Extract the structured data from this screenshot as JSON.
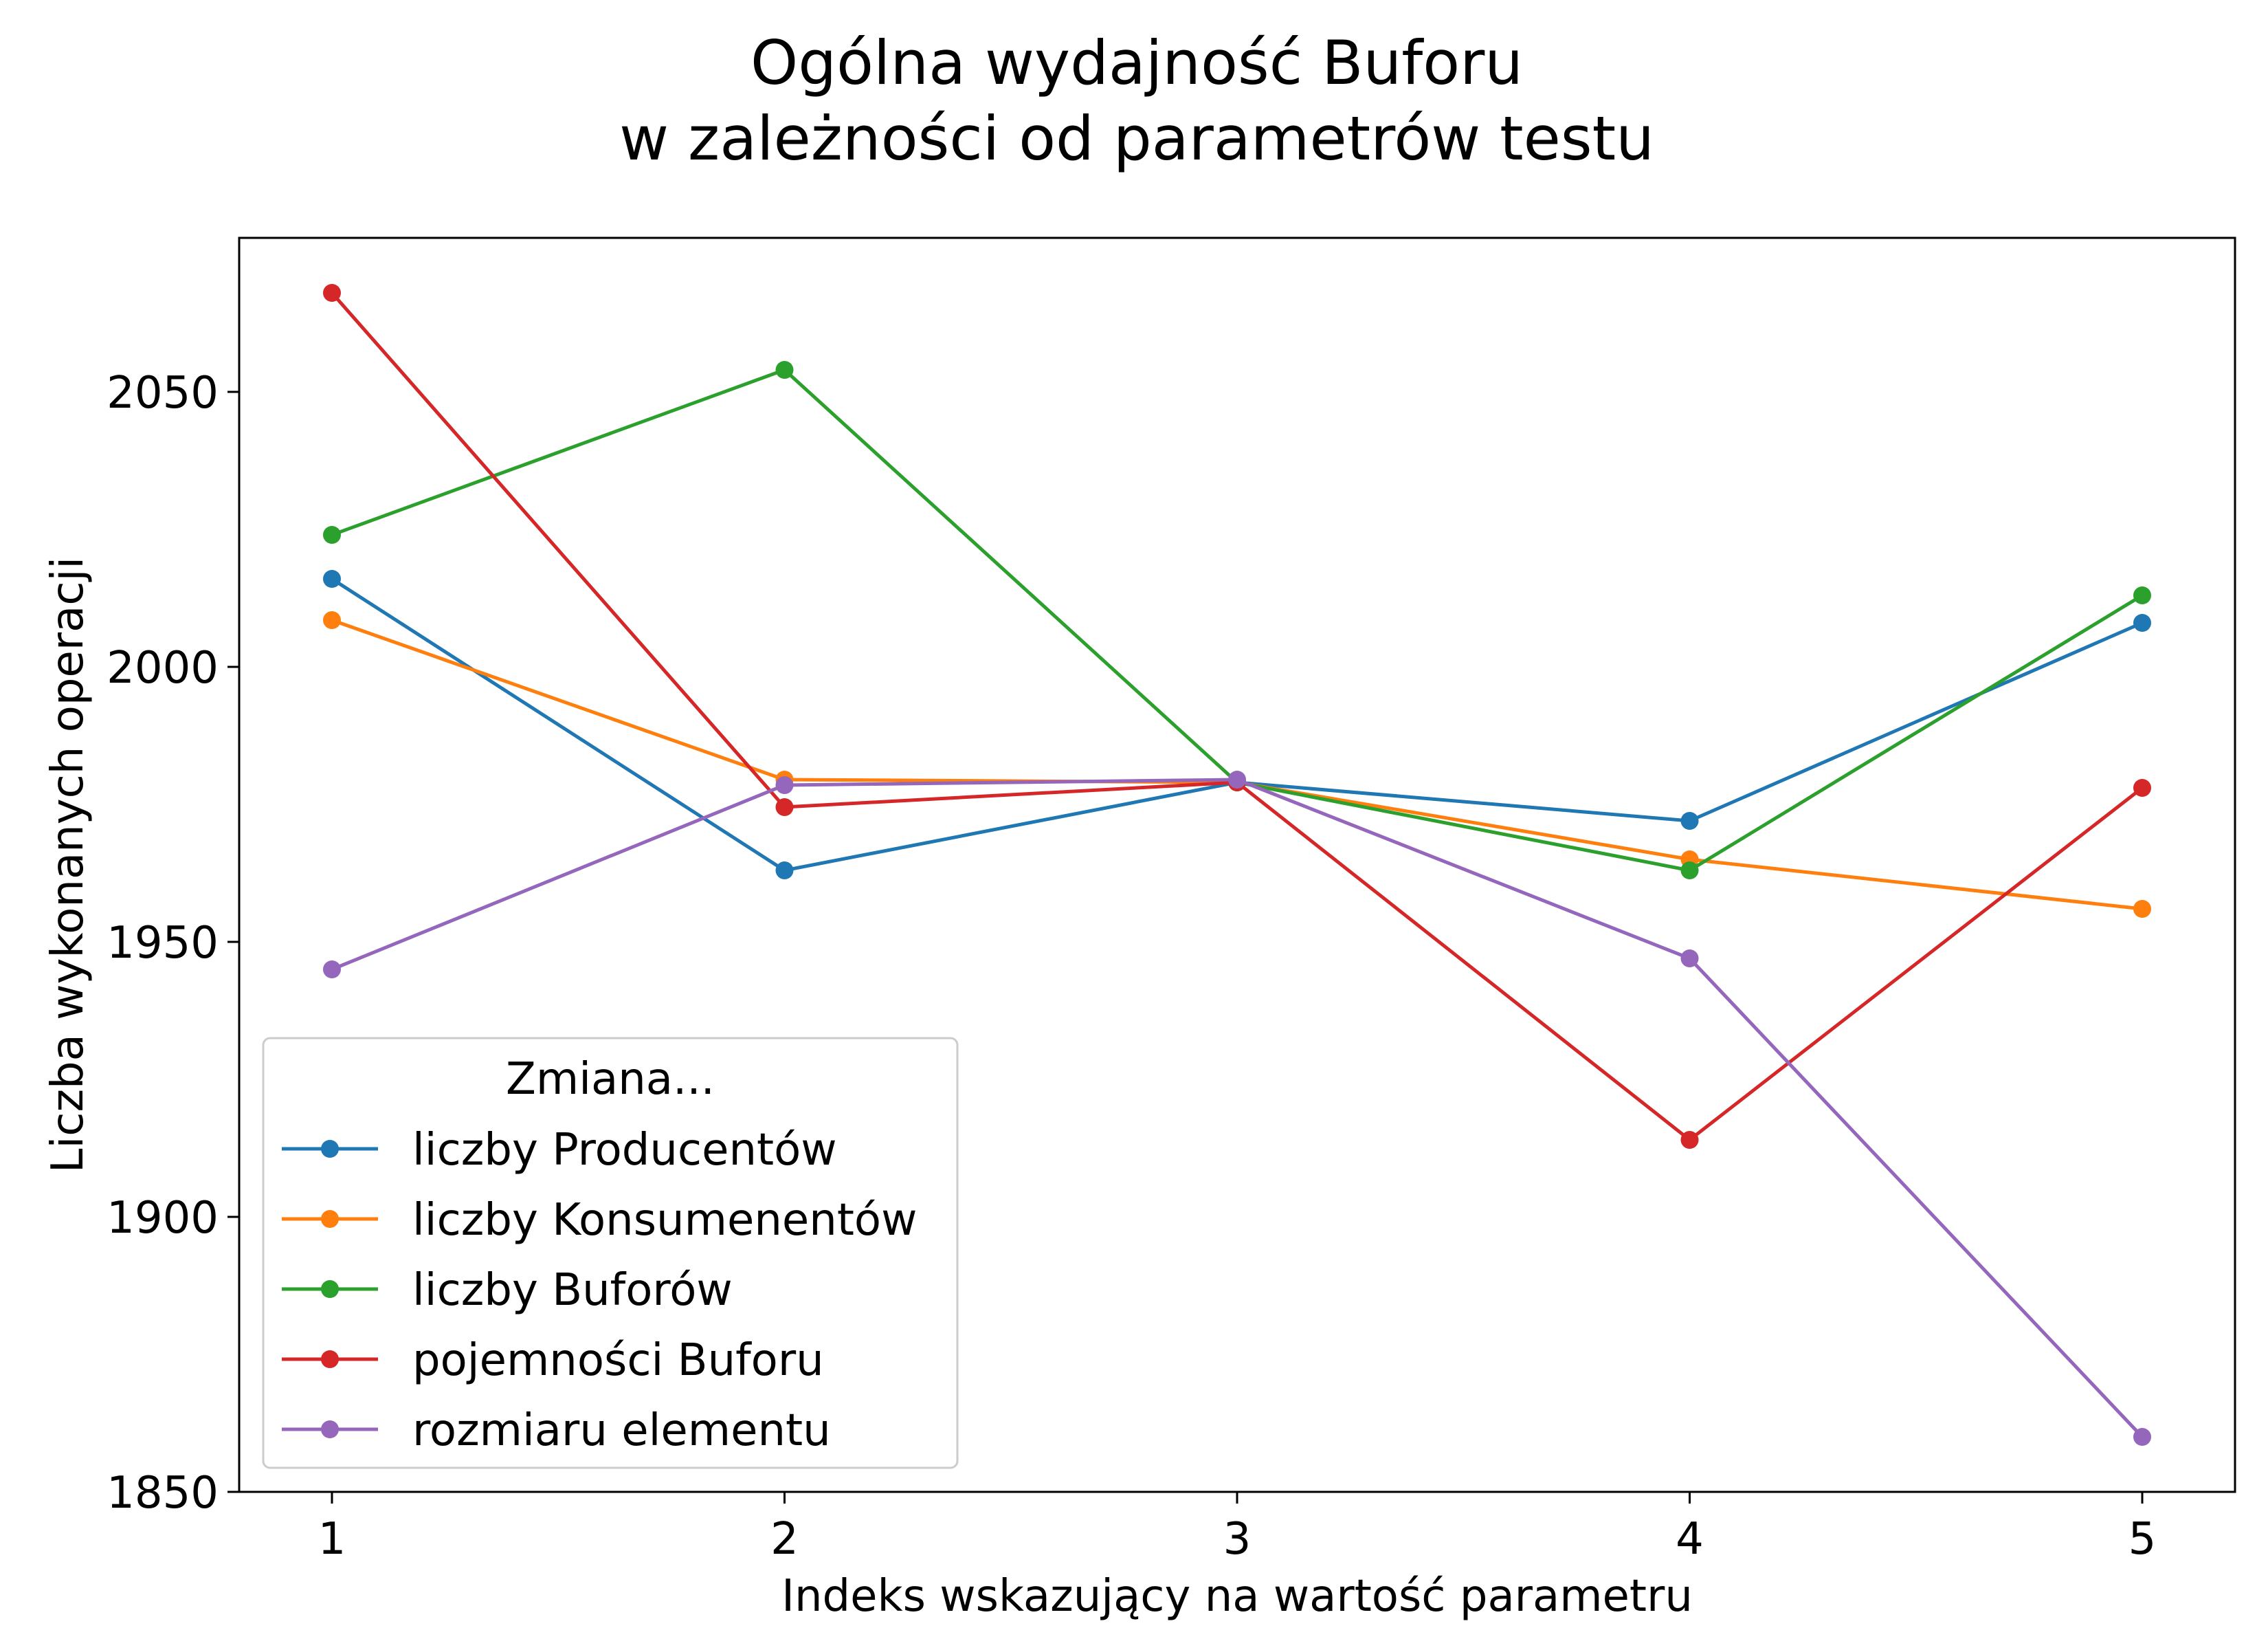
{
  "chart_data": {
    "type": "line",
    "title_lines": [
      "Ogólna wydajność Buforu",
      "w zależności od parametrów testu"
    ],
    "xlabel": "Indeks wskazujący na wartość parametru",
    "ylabel": "Liczba wykonanych operacji",
    "x": [
      1,
      2,
      3,
      4,
      5
    ],
    "xticks": [
      "1",
      "2",
      "3",
      "4",
      "5"
    ],
    "xlim": [
      0.795,
      5.205
    ],
    "yticks": [
      1850,
      1900,
      1950,
      2000,
      2050
    ],
    "ylim": [
      1850,
      2078
    ],
    "grid": false,
    "legend": {
      "title": "Zmiana...",
      "placement": "lower-left"
    },
    "series": [
      {
        "name": "liczby Producentów",
        "color": "#1f77b4",
        "values": [
          2016,
          1963,
          1979,
          1972,
          2008
        ]
      },
      {
        "name": "liczby Konsumenentów",
        "color": "#ff7f0e",
        "values": [
          2008.5,
          1979.5,
          1979,
          1965,
          1956
        ]
      },
      {
        "name": "liczby Buforów",
        "color": "#2ca02c",
        "values": [
          2024,
          2054,
          1979,
          1963,
          2013
        ]
      },
      {
        "name": "pojemności Buforu",
        "color": "#d62728",
        "values": [
          2068,
          1974.5,
          1979,
          1914,
          1978
        ]
      },
      {
        "name": "rozmiaru elementu",
        "color": "#9467bd",
        "values": [
          1945,
          1978.5,
          1979.5,
          1947,
          1860
        ]
      }
    ]
  }
}
